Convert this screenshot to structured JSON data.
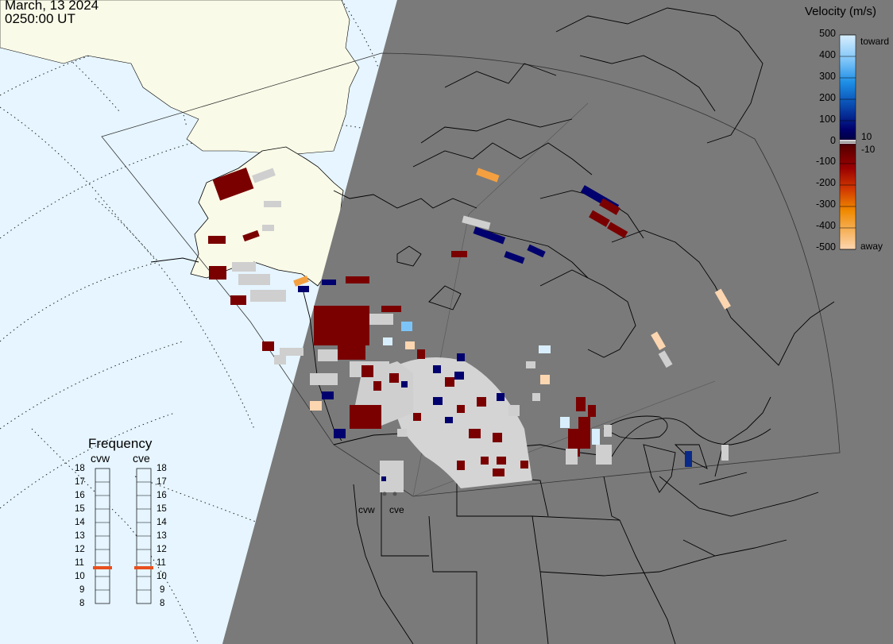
{
  "header": {
    "date": "March, 13 2024",
    "time": "0250:00 UT"
  },
  "colorbar": {
    "title": "Velocity (m/s)",
    "ticks": [
      "500",
      "400",
      "300",
      "200",
      "100",
      "0",
      "-100",
      "-200",
      "-300",
      "-400",
      "-500"
    ],
    "small_pos": "10",
    "small_neg": "-10",
    "toward_label": "toward",
    "away_label": "away",
    "colors": {
      "toward_high": "#d8eefc",
      "toward_mid": "#1e8fe6",
      "toward_low": "#00006e",
      "ground_scatter": "#cfcfcf",
      "away_low": "#7a0000",
      "away_mid": "#e05a00",
      "away_high": "#fcd6b0"
    }
  },
  "frequency_panel": {
    "title": "Frequency",
    "radars": [
      {
        "name": "cvw",
        "frequency_mhz": 11
      },
      {
        "name": "cve",
        "frequency_mhz": 11
      }
    ],
    "scale": [
      "18",
      "17",
      "16",
      "15",
      "14",
      "13",
      "12",
      "11",
      "10",
      "9",
      "8"
    ],
    "indicator_color": "#e8501e"
  },
  "radar_sites": {
    "west": "cvw",
    "east": "cve"
  },
  "map": {
    "night_color": "#7a7a7a",
    "day_ocean_color": "#e6f5ff",
    "day_land_color": "#fafae8",
    "grid_style": "dotted"
  }
}
